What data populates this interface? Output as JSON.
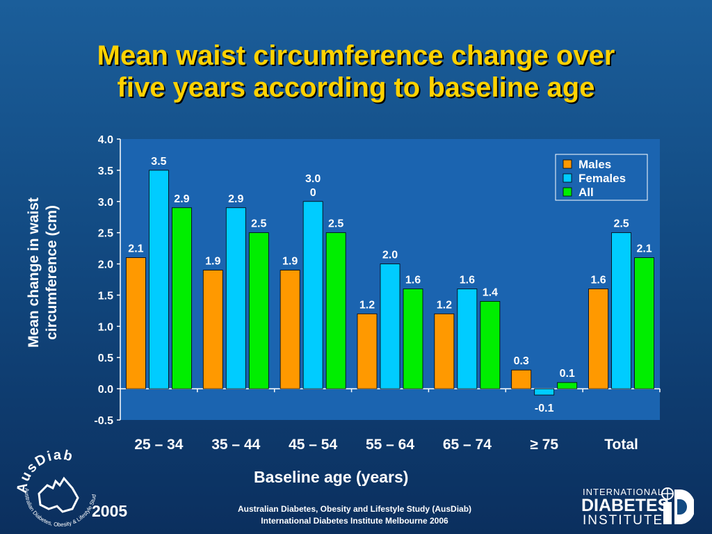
{
  "slide": {
    "title_line1": "Mean waist circumference change over",
    "title_line2": "five years according to baseline age",
    "year": "2005",
    "footer_line1": "Australian Diabetes, Obesity and Lifestyle Study (AusDiab)",
    "footer_line2": "International Diabetes Institute Melbourne 2006",
    "logo_left": {
      "name": "AusDiab",
      "tagline": "Australian Diabetes, Obesity & Lifestyle Study"
    },
    "logo_right": {
      "line1": "INTERNATIONAL",
      "line2": "DIABETES",
      "line3": "INSTITUTE"
    },
    "colors": {
      "title": "#ffd200",
      "plot_bg": "#1b64b0",
      "males": "#ff9900",
      "females": "#00ccff",
      "all": "#00ee00"
    }
  },
  "chart_data": {
    "type": "bar",
    "categories": [
      "25 – 34",
      "35 – 44",
      "45 – 54",
      "55 – 64",
      "65 – 74",
      "≥ 75",
      "Total"
    ],
    "series": [
      {
        "name": "Males",
        "color": "#ff9900",
        "values": [
          2.1,
          1.9,
          1.9,
          1.2,
          1.2,
          0.3,
          1.6
        ],
        "labels": [
          "2.1",
          "1.9",
          "1.9",
          "1.2",
          "1.2",
          "0.3",
          "1.6"
        ]
      },
      {
        "name": "Females",
        "color": "#00ccff",
        "values": [
          3.5,
          2.9,
          3.0,
          2.0,
          1.6,
          -0.1,
          2.5
        ],
        "labels": [
          "3.5",
          "2.9",
          "3.0\n0",
          "2.0",
          "1.6",
          "-0.1",
          "2.5"
        ]
      },
      {
        "name": "All",
        "color": "#00ee00",
        "values": [
          2.9,
          2.5,
          2.5,
          1.6,
          1.4,
          0.1,
          2.1
        ],
        "labels": [
          "2.9",
          "2.5",
          "2.5",
          "1.6",
          "1.4",
          "0.1",
          "2.1"
        ]
      }
    ],
    "xlabel": "Baseline age (years)",
    "ylabel": "Mean change in waist circumference (cm)",
    "ylim": [
      -0.5,
      4.0
    ],
    "yticks": [
      "4.0",
      "3.5",
      "3.0",
      "2.5",
      "2.0",
      "1.5",
      "1.0",
      "0.5",
      "0.0",
      "-0.5"
    ],
    "legend_position": "top-right",
    "grid": false
  }
}
